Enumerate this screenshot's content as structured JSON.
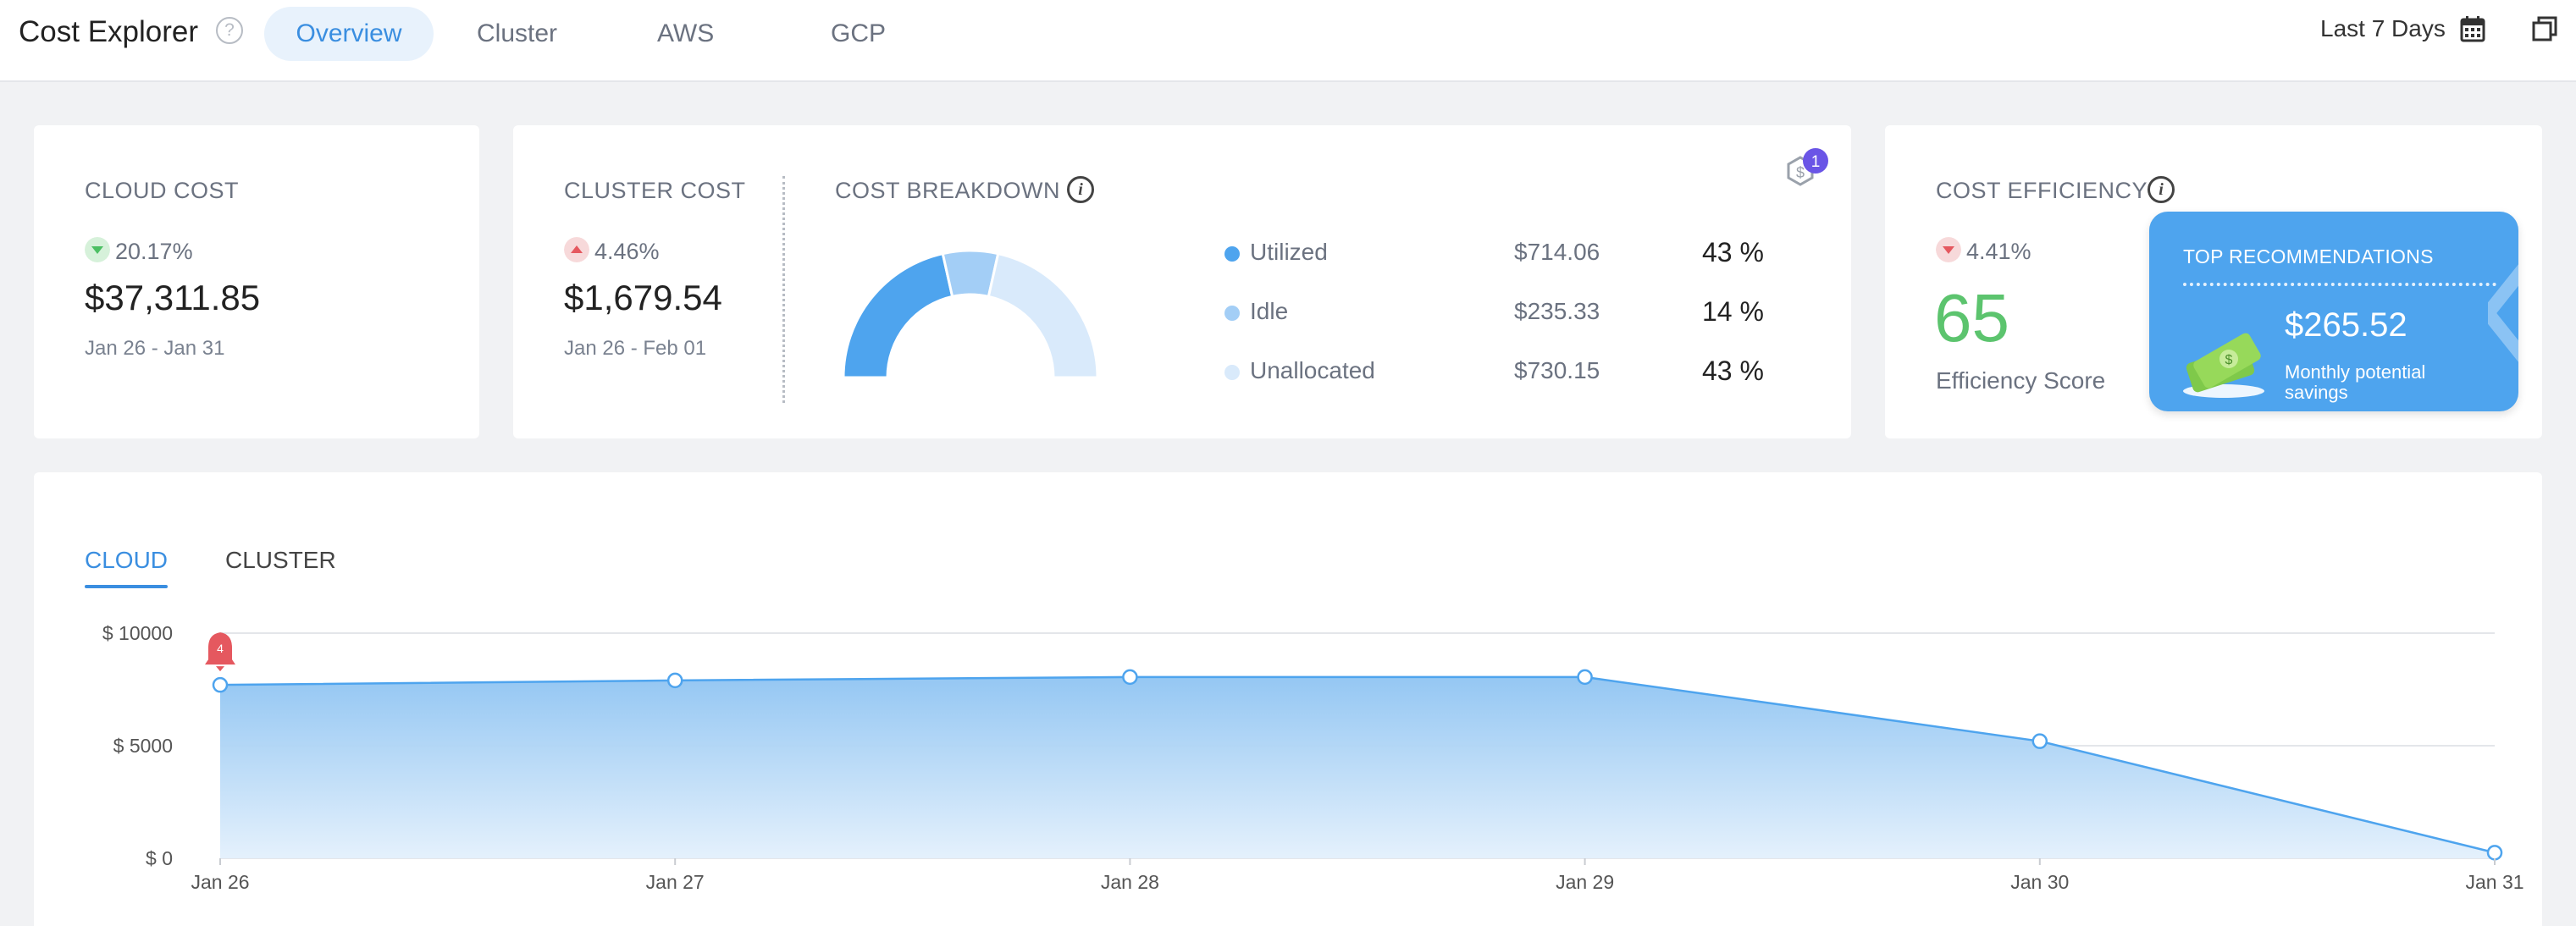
{
  "header": {
    "title": "Cost Explorer",
    "help_icon": "question-circle-icon",
    "tabs": [
      {
        "label": "Overview",
        "active": true
      },
      {
        "label": "Cluster",
        "active": false
      },
      {
        "label": "AWS",
        "active": false
      },
      {
        "label": "GCP",
        "active": false
      }
    ],
    "range_label": "Last 7 Days",
    "calendar_icon": "calendar-icon",
    "window_icon": "window-restore-icon"
  },
  "cloud_cost": {
    "title": "CLOUD COST",
    "delta": "20.17%",
    "delta_direction": "down",
    "value": "$37,311.85",
    "date_range": "Jan 26 - Jan 31"
  },
  "cluster_cost": {
    "title": "CLUSTER COST",
    "delta": "4.46%",
    "delta_direction": "up",
    "value": "$1,679.54",
    "date_range": "Jan 26 - Feb 01"
  },
  "cost_breakdown": {
    "title": "COST BREAKDOWN",
    "notification_count": "1",
    "items": [
      {
        "label": "Utilized",
        "amount": "$714.06",
        "percent": "43 %",
        "color": "#4ea4ee"
      },
      {
        "label": "Idle",
        "amount": "$235.33",
        "percent": "14 %",
        "color": "#a3cef6"
      },
      {
        "label": "Unallocated",
        "amount": "$730.15",
        "percent": "43 %",
        "color": "#d9eafb"
      }
    ]
  },
  "cost_efficiency": {
    "title": "COST EFFICIENCY",
    "delta": "4.41%",
    "delta_direction": "down",
    "score": "65",
    "score_label": "Efficiency Score",
    "reco_title": "TOP RECOMMENDATIONS",
    "reco_amount": "$265.52",
    "reco_sub": "Monthly potential savings",
    "reco_icon": "money-stack-icon"
  },
  "chart_tabs": [
    {
      "label": "CLOUD",
      "active": true
    },
    {
      "label": "CLUSTER",
      "active": false
    }
  ],
  "alert_count": "4",
  "colors": {
    "accent": "#3a8ee0",
    "positive": "#5cc46e",
    "negative": "#e5585f"
  },
  "chart_data": {
    "type": "area",
    "categories": [
      "Jan 26",
      "Jan 27",
      "Jan 28",
      "Jan 29",
      "Jan 30",
      "Jan 31"
    ],
    "values": [
      7700,
      7900,
      8050,
      8050,
      5200,
      250
    ],
    "ylim": [
      0,
      10000
    ],
    "yticks": [
      {
        "value": 0,
        "label": "$ 0"
      },
      {
        "value": 5000,
        "label": "$ 5000"
      },
      {
        "value": 10000,
        "label": "$ 10000"
      }
    ],
    "grid": true
  }
}
